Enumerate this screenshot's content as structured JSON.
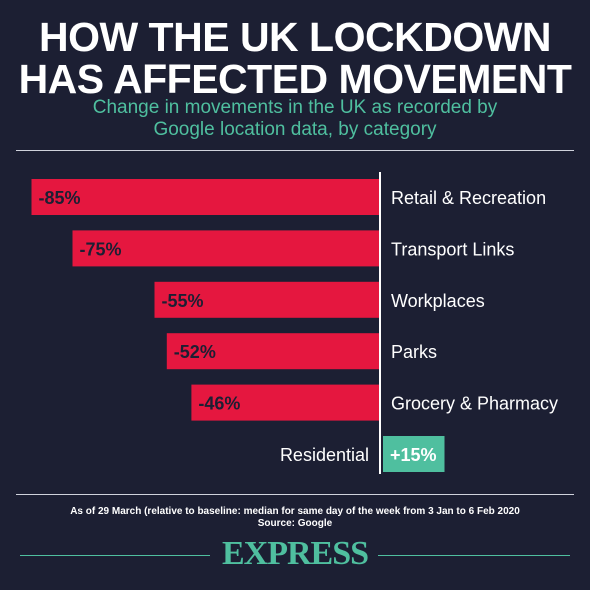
{
  "header": {
    "title_line1": "HOW THE UK LOCKDOWN",
    "title_line2": "HAS AFFECTED MOVEMENT",
    "subtitle_line1": "Change in movements in the UK as recorded by",
    "subtitle_line2": "Google location data, by category"
  },
  "chart_data": {
    "type": "bar",
    "orientation": "horizontal",
    "title": "",
    "xlabel": "",
    "ylabel": "",
    "categories": [
      "Retail & Recreation",
      "Transport Links",
      "Workplaces",
      "Parks",
      "Grocery & Pharmacy",
      "Residential"
    ],
    "values": [
      -85,
      -75,
      -55,
      -52,
      -46,
      15
    ],
    "data_labels": [
      "-85%",
      "-75%",
      "-55%",
      "-52%",
      "-46%",
      "+15%"
    ],
    "unit": "%",
    "xlim": [
      -85,
      15
    ],
    "grid": false,
    "colors": {
      "negative": "#e5173f",
      "positive": "#4fbf9f"
    }
  },
  "footer": {
    "note_line1": "As of 29 March (relative to baseline: median for same day of the week from 3 Jan to 6 Feb 2020",
    "note_line2": "Source: Google",
    "brand": "EXPRESS"
  },
  "colors": {
    "background": "#1c1f33",
    "accent": "#4fbf9f",
    "negative_bar": "#e5173f",
    "text": "#ffffff"
  }
}
